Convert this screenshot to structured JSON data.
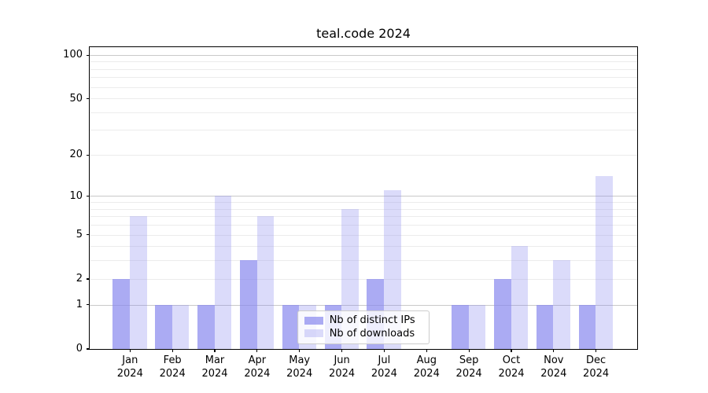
{
  "chart_data": {
    "type": "bar",
    "title": "teal.code 2024",
    "categories": [
      "Jan",
      "Feb",
      "Mar",
      "Apr",
      "May",
      "Jun",
      "Jul",
      "Aug",
      "Sep",
      "Oct",
      "Nov",
      "Dec"
    ],
    "category_year": "2024",
    "series": [
      {
        "name": "Nb of distinct IPs",
        "values": [
          2,
          1,
          1,
          3,
          1,
          1,
          2,
          0,
          1,
          2,
          1,
          1
        ]
      },
      {
        "name": "Nb of downloads",
        "values": [
          7,
          1,
          10,
          7,
          1,
          8,
          11,
          0,
          1,
          4,
          3,
          14
        ]
      }
    ],
    "xlabel": "",
    "ylabel": "",
    "yscale": "log1p",
    "ylim": [
      0,
      113
    ],
    "yticks": [
      0,
      1,
      2,
      5,
      10,
      20,
      50,
      100
    ],
    "major_gridlines": [
      1,
      10,
      100
    ],
    "minor_gridlines": [
      2,
      3,
      4,
      5,
      6,
      7,
      8,
      9,
      20,
      30,
      40,
      50,
      60,
      70,
      80,
      90
    ],
    "grid": true,
    "legend_position": "inside-lower-center"
  },
  "colors": {
    "bar_base": "#8888ee",
    "series_alpha": [
      0.7,
      0.3
    ],
    "series_rgba": [
      "rgba(136,136,238,0.7)",
      "rgba(136,136,238,0.3)"
    ],
    "major_grid": "#c9c9c9",
    "minor_grid": "#ececec",
    "axis": "#000000",
    "background": "#ffffff",
    "legend_border": "#cccccc",
    "legend_background": "rgba(255,255,255,0.8)"
  }
}
